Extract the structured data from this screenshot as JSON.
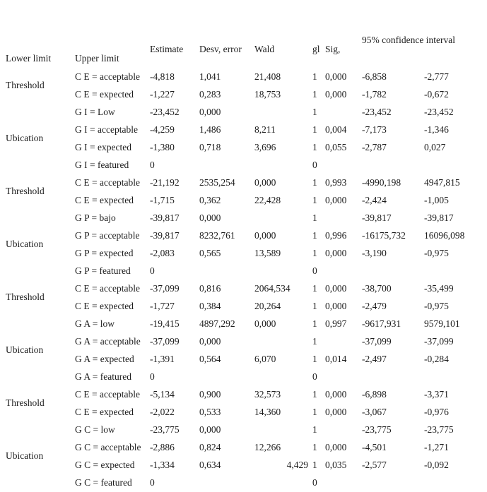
{
  "table": {
    "headers": {
      "estimate": "Estimate",
      "desv_error": "Desv, error",
      "wald": "Wald",
      "gl": "gl",
      "sig": "Sig,",
      "ci": "95% confidence interval",
      "lower": "Lower limit",
      "upper": "Upper limit"
    },
    "rows": [
      {
        "group": "Threshold",
        "span": 2,
        "label": "C E = acceptable",
        "cells": [
          "-4,818",
          "1,041",
          "21,408",
          "1",
          "0,000",
          "-6,858",
          "-2,777"
        ]
      },
      {
        "label": "C E = expected",
        "cells": [
          "-1,227",
          "0,283",
          "18,753",
          "1",
          "0,000",
          "-1,782",
          "-0,672"
        ]
      },
      {
        "group": "Ubication",
        "span": 4,
        "label": "G I = Low",
        "cells": [
          "-23,452",
          "0,000",
          "",
          "1",
          "",
          "-23,452",
          "-23,452"
        ]
      },
      {
        "label": "G I = acceptable",
        "cells": [
          "-4,259",
          "1,486",
          "8,211",
          "1",
          "0,004",
          "-7,173",
          "-1,346"
        ]
      },
      {
        "label": "G I = expected",
        "cells": [
          "-1,380",
          "0,718",
          "3,696",
          "1",
          "0,055",
          "-2,787",
          "0,027"
        ]
      },
      {
        "label": "G I = featured",
        "cells": [
          "0",
          "",
          "",
          "0",
          "",
          "",
          ""
        ]
      },
      {
        "group": "Threshold",
        "span": 2,
        "label": "C E = acceptable",
        "cells": [
          "-21,192",
          "2535,254",
          "0,000",
          "1",
          "0,993",
          "-4990,198",
          "4947,815"
        ]
      },
      {
        "label": "C E = expected",
        "cells": [
          "-1,715",
          "0,362",
          "22,428",
          "1",
          "0,000",
          "-2,424",
          "-1,005"
        ]
      },
      {
        "group": "Ubication",
        "span": 4,
        "label": "G P = bajo",
        "cells": [
          "-39,817",
          "0,000",
          "",
          "1",
          "",
          "-39,817",
          "-39,817"
        ]
      },
      {
        "label": "G P = acceptable",
        "cells": [
          "-39,817",
          "8232,761",
          "0,000",
          "1",
          "0,996",
          "-16175,732",
          "16096,098"
        ]
      },
      {
        "label": "G P = expected",
        "cells": [
          "-2,083",
          "0,565",
          "13,589",
          "1",
          "0,000",
          "-3,190",
          "-0,975"
        ]
      },
      {
        "label": "G P = featured",
        "cells": [
          "0",
          "",
          "",
          "0",
          "",
          "",
          ""
        ]
      },
      {
        "group": "Threshold",
        "span": 2,
        "label": "C E = acceptable",
        "cells": [
          "-37,099",
          "0,816",
          "2064,534",
          "1",
          "0,000",
          "-38,700",
          "-35,499"
        ]
      },
      {
        "label": "C E = expected",
        "cells": [
          "-1,727",
          "0,384",
          "20,264",
          "1",
          "0,000",
          "-2,479",
          "-0,975"
        ]
      },
      {
        "group": "Ubication",
        "span": 4,
        "label": "G A = low",
        "cells": [
          "-19,415",
          "4897,292",
          "0,000",
          "1",
          "0,997",
          "-9617,931",
          "9579,101"
        ]
      },
      {
        "label": "G A = acceptable",
        "cells": [
          "-37,099",
          "0,000",
          "",
          "1",
          "",
          "-37,099",
          "-37,099"
        ]
      },
      {
        "label": "G A = expected",
        "cells": [
          "-1,391",
          "0,564",
          "6,070",
          "1",
          "0,014",
          "-2,497",
          "-0,284"
        ]
      },
      {
        "label": "G A = featured",
        "cells": [
          "0",
          "",
          "",
          "0",
          "",
          "",
          ""
        ]
      },
      {
        "group": "Threshold",
        "span": 2,
        "label": "C E = acceptable",
        "cells": [
          "-5,134",
          "0,900",
          "32,573",
          "1",
          "0,000",
          "-6,898",
          "-3,371"
        ]
      },
      {
        "label": "C E = expected",
        "cells": [
          "-2,022",
          "0,533",
          "14,360",
          "1",
          "0,000",
          "-3,067",
          "-0,976"
        ]
      },
      {
        "group": "Ubication",
        "span": 4,
        "label": "G C = low",
        "cells": [
          "-23,775",
          "0,000",
          "",
          "1",
          "",
          "-23,775",
          "-23,775"
        ]
      },
      {
        "label": "G C = acceptable",
        "cells": [
          "-2,886",
          "0,824",
          "12,266",
          "1",
          "0,000",
          "-4,501",
          "-1,271"
        ]
      },
      {
        "label": "G C = expected",
        "cells": [
          "-1,334",
          "0,634",
          "4,429",
          "1",
          "0,035",
          "-2,577",
          "-0,092"
        ],
        "aligns": {
          "2": "right"
        }
      },
      {
        "label": "G C = featured",
        "cells": [
          "0",
          "",
          "",
          "0",
          "",
          "",
          ""
        ]
      }
    ]
  }
}
